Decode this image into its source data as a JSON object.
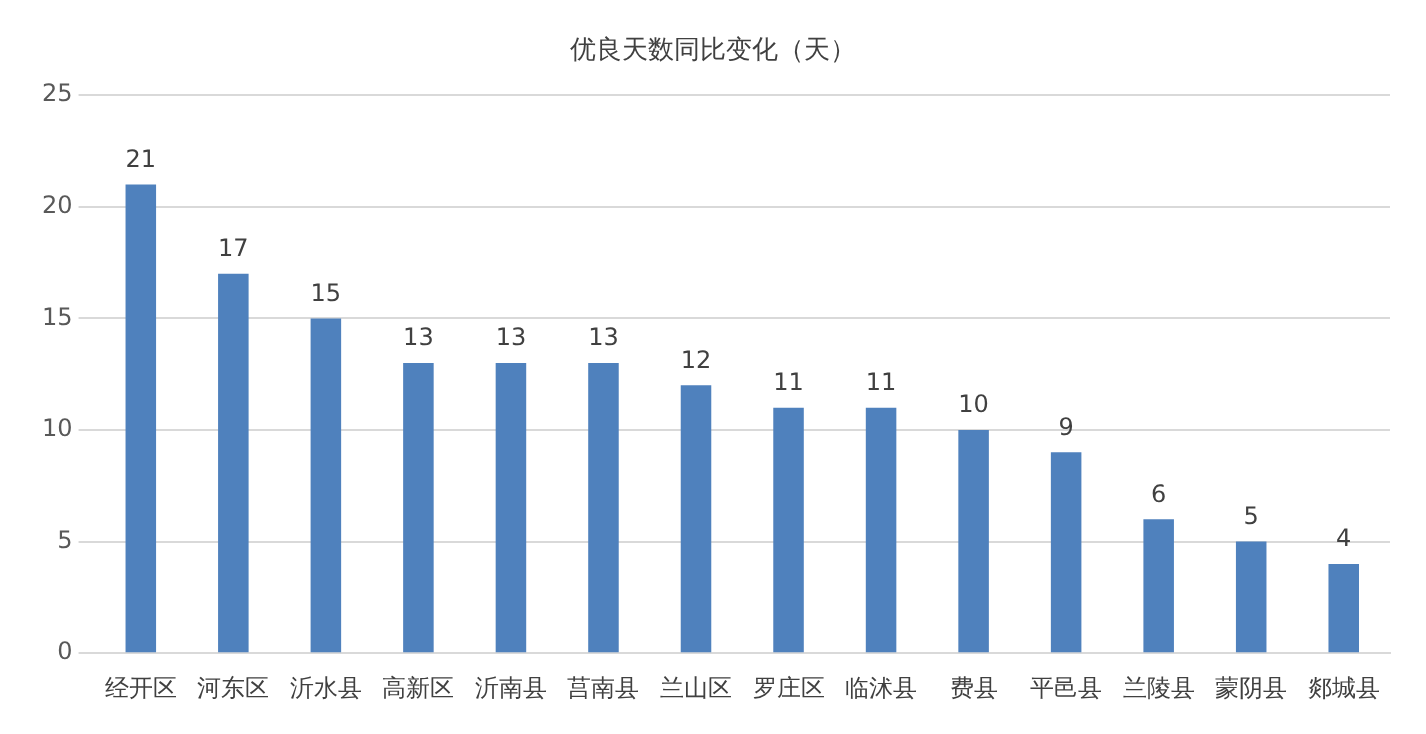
{
  "chart_data": {
    "type": "bar",
    "title": "优良天数同比变化（天）",
    "categories": [
      "经开区",
      "河东区",
      "沂水县",
      "高新区",
      "沂南县",
      "莒南县",
      "兰山区",
      "罗庄区",
      "临沭县",
      "费县",
      "平邑县",
      "兰陵县",
      "蒙阴县",
      "郯城县"
    ],
    "values": [
      21,
      17,
      15,
      13,
      13,
      13,
      12,
      11,
      11,
      10,
      9,
      6,
      5,
      4
    ],
    "color": "#4f81bd",
    "ylim": [
      0,
      25
    ],
    "yticks": [
      0,
      5,
      10,
      15,
      20,
      25
    ],
    "grid": "y",
    "data_labels": true,
    "legend": false
  }
}
